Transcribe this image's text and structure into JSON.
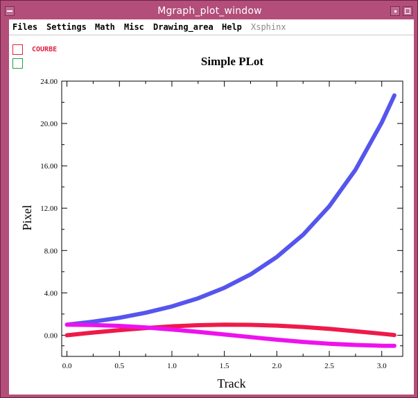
{
  "window": {
    "title": "Mgraph_plot_window"
  },
  "menubar": {
    "items": [
      {
        "label": "Files",
        "enabled": true
      },
      {
        "label": "Settings",
        "enabled": true
      },
      {
        "label": "Math",
        "enabled": true
      },
      {
        "label": "Misc",
        "enabled": true
      },
      {
        "label": "Drawing_area",
        "enabled": true
      },
      {
        "label": "Help",
        "enabled": true
      },
      {
        "label": "Xsphinx",
        "enabled": false
      }
    ]
  },
  "legend": [
    {
      "label": "COURBE",
      "color": "#e02040"
    },
    {
      "label": "",
      "color": "#20a040"
    }
  ],
  "colors": {
    "window_frame": "#b24e79",
    "curve_exp": "#5555ee",
    "curve_sin": "#ee1a4a",
    "curve_cos": "#ee11ee"
  },
  "chart_data": {
    "type": "line",
    "title": "Simple PLot",
    "xlabel": "Track",
    "ylabel": "Pixel",
    "xlim": [
      -0.05,
      3.2
    ],
    "ylim": [
      -2.0,
      24.0
    ],
    "xticks": [
      "0.0",
      "0.5",
      "1.0",
      "1.5",
      "2.0",
      "2.5",
      "3.0"
    ],
    "yticks": [
      "0.00",
      "4.00",
      "8.00",
      "12.00",
      "16.00",
      "20.00",
      "24.00"
    ],
    "grid": false,
    "series": [
      {
        "color": "#5555ee",
        "x": [
          0,
          0.25,
          0.5,
          0.75,
          1.0,
          1.25,
          1.5,
          1.75,
          2.0,
          2.25,
          2.5,
          2.75,
          3.0,
          3.12
        ],
        "y": [
          1.0,
          1.28,
          1.65,
          2.12,
          2.72,
          3.49,
          4.48,
          5.75,
          7.39,
          9.49,
          12.18,
          15.64,
          20.09,
          22.65
        ]
      },
      {
        "color": "#ee1a4a",
        "x": [
          0,
          0.25,
          0.5,
          0.75,
          1.0,
          1.25,
          1.5,
          1.75,
          2.0,
          2.25,
          2.5,
          2.75,
          3.0,
          3.12
        ],
        "y": [
          0.0,
          0.25,
          0.48,
          0.68,
          0.84,
          0.95,
          1.0,
          0.98,
          0.91,
          0.78,
          0.6,
          0.38,
          0.14,
          0.02
        ]
      },
      {
        "color": "#ee11ee",
        "x": [
          0,
          0.25,
          0.5,
          0.75,
          1.0,
          1.25,
          1.5,
          1.75,
          2.0,
          2.25,
          2.5,
          2.75,
          3.0,
          3.12
        ],
        "y": [
          1.0,
          0.97,
          0.88,
          0.73,
          0.54,
          0.32,
          0.07,
          -0.18,
          -0.42,
          -0.63,
          -0.8,
          -0.92,
          -0.99,
          -1.0
        ]
      }
    ]
  }
}
